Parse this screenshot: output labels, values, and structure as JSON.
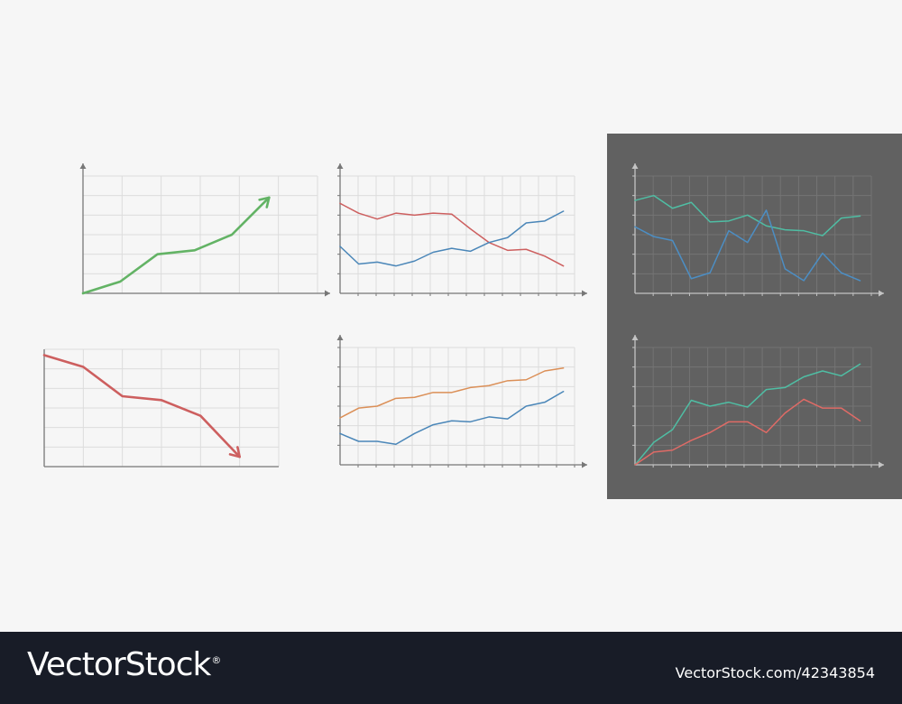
{
  "colors": {
    "background": "#f6f6f6",
    "dark_panel": "#616161",
    "footer_bg": "#181c27",
    "green": "#63b365",
    "red": "#cd5f5f",
    "blue": "#4a86b8",
    "orange": "#db8f57",
    "teal": "#4fbea4",
    "dark_blue": "#4c8ec4",
    "salmon": "#e06b66"
  },
  "footer": {
    "brand": "VectorStock",
    "registered": "®",
    "site": "VectorStock.com/42343854"
  },
  "chart_data": [
    {
      "id": "rising-arrow",
      "type": "line",
      "theme": "light",
      "arrow": true,
      "x": [
        0,
        1,
        2,
        3,
        4,
        5
      ],
      "xlim": [
        0,
        6.3
      ],
      "ylim": [
        0,
        6
      ],
      "grid": true,
      "x_gridlines": 6,
      "y_gridlines": 6,
      "series": [
        {
          "color": "green",
          "values": [
            0,
            0.6,
            2.0,
            2.2,
            3.0,
            4.9
          ]
        }
      ]
    },
    {
      "id": "falling-arrow",
      "type": "line",
      "theme": "light",
      "arrow": true,
      "x": [
        0,
        1,
        2,
        3,
        4,
        5
      ],
      "xlim": [
        0,
        6
      ],
      "ylim": [
        0,
        6
      ],
      "grid": true,
      "x_gridlines": 6,
      "y_gridlines": 6,
      "series": [
        {
          "color": "red",
          "values": [
            5.7,
            5.1,
            3.6,
            3.4,
            2.6,
            0.5
          ]
        }
      ]
    },
    {
      "id": "crossing-lines",
      "type": "line",
      "theme": "light",
      "x": [
        0,
        1,
        2,
        3,
        4,
        5,
        6,
        7,
        8,
        9,
        10,
        11,
        12
      ],
      "xlim": [
        0,
        12.6
      ],
      "ylim": [
        0,
        6
      ],
      "grid": true,
      "x_gridlines": 13,
      "y_gridlines": 6,
      "series": [
        {
          "color": "red",
          "values": [
            4.6,
            4.1,
            3.8,
            4.1,
            4.0,
            4.1,
            4.05,
            3.3,
            2.6,
            2.2,
            2.25,
            1.9,
            1.4
          ]
        },
        {
          "color": "blue",
          "values": [
            2.4,
            1.5,
            1.6,
            1.4,
            1.65,
            2.1,
            2.3,
            2.15,
            2.6,
            2.85,
            3.6,
            3.7,
            4.2
          ]
        }
      ]
    },
    {
      "id": "rising-pair",
      "type": "line",
      "theme": "light",
      "x": [
        0,
        1,
        2,
        3,
        4,
        5,
        6,
        7,
        8,
        9,
        10,
        11,
        12
      ],
      "xlim": [
        0,
        12.6
      ],
      "ylim": [
        0,
        6
      ],
      "grid": true,
      "x_gridlines": 13,
      "y_gridlines": 6,
      "series": [
        {
          "color": "orange",
          "values": [
            2.4,
            2.9,
            3.0,
            3.4,
            3.45,
            3.7,
            3.7,
            3.95,
            4.05,
            4.3,
            4.35,
            4.8,
            4.95
          ]
        },
        {
          "color": "blue",
          "values": [
            1.6,
            1.2,
            1.2,
            1.05,
            1.6,
            2.05,
            2.25,
            2.2,
            2.45,
            2.35,
            3.0,
            3.2,
            3.75
          ]
        }
      ]
    },
    {
      "id": "dark-volatile",
      "type": "line",
      "theme": "dark",
      "x": [
        0,
        1,
        2,
        3,
        4,
        5,
        6,
        7,
        8,
        9,
        10,
        11,
        12
      ],
      "xlim": [
        0,
        12.6
      ],
      "ylim": [
        0,
        6
      ],
      "grid": true,
      "x_gridlines": 13,
      "y_gridlines": 6,
      "series": [
        {
          "color": "teal",
          "values": [
            4.75,
            5.0,
            4.35,
            4.65,
            3.65,
            3.7,
            4.0,
            3.45,
            3.25,
            3.2,
            2.95,
            3.85,
            3.95
          ]
        },
        {
          "color": "dark_blue",
          "values": [
            3.4,
            2.9,
            2.7,
            0.75,
            1.05,
            3.2,
            2.6,
            4.25,
            1.25,
            0.65,
            2.05,
            1.05,
            0.65
          ]
        }
      ]
    },
    {
      "id": "dark-rising",
      "type": "line",
      "theme": "dark",
      "x": [
        0,
        1,
        2,
        3,
        4,
        5,
        6,
        7,
        8,
        9,
        10,
        11,
        12
      ],
      "xlim": [
        0,
        12.6
      ],
      "ylim": [
        0,
        6
      ],
      "grid": true,
      "x_gridlines": 13,
      "y_gridlines": 6,
      "series": [
        {
          "color": "teal",
          "values": [
            0,
            1.15,
            1.8,
            3.3,
            3.0,
            3.2,
            2.95,
            3.85,
            3.95,
            4.5,
            4.8,
            4.55,
            5.15
          ]
        },
        {
          "color": "salmon",
          "values": [
            0,
            0.65,
            0.75,
            1.25,
            1.65,
            2.2,
            2.2,
            1.65,
            2.65,
            3.35,
            2.9,
            2.9,
            2.25
          ]
        }
      ]
    }
  ]
}
